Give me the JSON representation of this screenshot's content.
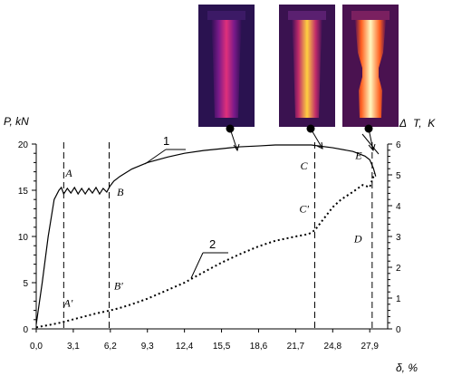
{
  "chart_data": {
    "type": "line",
    "xlabel": "δ, %",
    "ylabel_left": "P, kN",
    "ylabel_right_delta": "Δ",
    "ylabel_right": "T,  K",
    "xlim": [
      0,
      29.4
    ],
    "ylim_left": [
      0,
      20
    ],
    "ylim_right": [
      0,
      6
    ],
    "x_ticks": [
      "0,0",
      "3,1",
      "6,2",
      "9,3",
      "12,4",
      "15,5",
      "18,6",
      "21,7",
      "24,8",
      "27,9"
    ],
    "x_tick_values": [
      0,
      3.1,
      6.2,
      9.3,
      12.4,
      15.5,
      18.6,
      21.7,
      24.8,
      27.9
    ],
    "y_ticks_left": [
      "0",
      "5",
      "10",
      "15",
      "20"
    ],
    "y_ticks_right": [
      "0",
      "1",
      "2",
      "3",
      "4",
      "5",
      "6"
    ],
    "series": [
      {
        "name": "1",
        "axis": "left",
        "style": "solid",
        "x": [
          0,
          0.5,
          1.0,
          1.5,
          1.9,
          2.1,
          2.3,
          2.6,
          2.9,
          3.2,
          3.5,
          3.8,
          4.1,
          4.4,
          4.7,
          5.0,
          5.3,
          5.6,
          5.9,
          6.1,
          6.2,
          6.5,
          7.0,
          8.0,
          9.3,
          11,
          12.4,
          14,
          15.5,
          17,
          18.6,
          20,
          21.7,
          23.0,
          24.8,
          26.5,
          27.5,
          27.9,
          28.2,
          28.4
        ],
        "values": [
          0.5,
          5,
          10,
          14,
          15,
          15.3,
          14.6,
          15.2,
          14.7,
          15.3,
          14.6,
          15.2,
          14.6,
          15.2,
          14.7,
          15.3,
          14.6,
          15.2,
          14.8,
          15.3,
          15.5,
          16.0,
          16.5,
          17.3,
          18.0,
          18.6,
          19.0,
          19.3,
          19.5,
          19.7,
          19.8,
          19.9,
          19.9,
          19.9,
          19.6,
          19.2,
          18.7,
          18.3,
          17.4,
          16.5
        ]
      },
      {
        "name": "2",
        "axis": "right",
        "style": "dotted",
        "x": [
          0,
          1.0,
          2.0,
          3.0,
          4.0,
          5.0,
          6.2,
          7.0,
          8.0,
          9.3,
          10.5,
          12.4,
          14.0,
          15.5,
          17.0,
          18.6,
          20.0,
          21.7,
          22.8,
          23.3,
          23.8,
          24.8,
          25.5,
          26.5,
          27.3,
          27.9,
          28.3
        ],
        "values": [
          0.05,
          0.12,
          0.2,
          0.3,
          0.4,
          0.5,
          0.6,
          0.68,
          0.8,
          0.98,
          1.18,
          1.5,
          1.84,
          2.15,
          2.42,
          2.68,
          2.86,
          3.0,
          3.08,
          3.2,
          3.45,
          3.95,
          4.2,
          4.45,
          4.67,
          4.6,
          5.05
        ]
      }
    ],
    "points": [
      {
        "label": "A",
        "x": 2.0,
        "y": 15.5,
        "axis": "left"
      },
      {
        "label": "B",
        "x": 6.3,
        "y": 15.0,
        "axis": "left"
      },
      {
        "label": "C",
        "x": 23.3,
        "y": 18.8,
        "axis": "left"
      },
      {
        "label": "E",
        "x": 27.3,
        "y": 17.0,
        "axis": "left"
      },
      {
        "label": "A'",
        "x": 2.0,
        "y": 0.55,
        "axis": "right"
      },
      {
        "label": "B'",
        "x": 6.2,
        "y": 0.98,
        "axis": "right"
      },
      {
        "label": "C'",
        "x": 22.0,
        "y": 3.55,
        "axis": "right"
      },
      {
        "label": "D",
        "x": 27.5,
        "y": 3.4,
        "axis": "right"
      }
    ],
    "vlines_x": [
      2.3,
      6.1,
      23.3,
      28.1
    ],
    "curve_labels": [
      "1",
      "2"
    ],
    "thermograms": 3
  }
}
